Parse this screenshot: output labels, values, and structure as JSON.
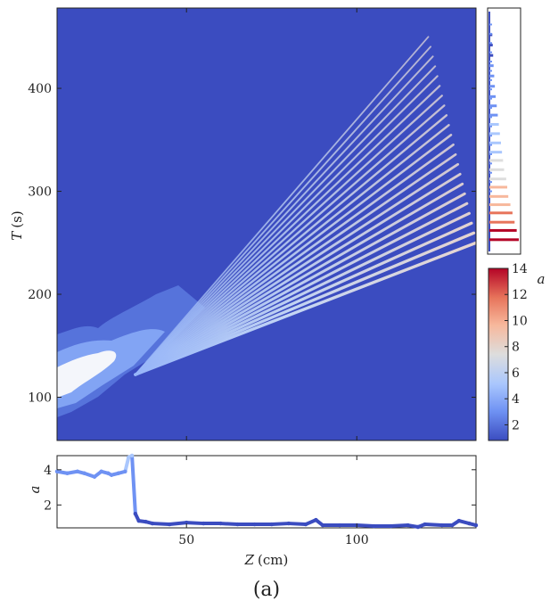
{
  "caption": "(a)",
  "colors": {
    "background_field": "#3b4cc0",
    "axis": "#222222",
    "colormap": [
      "#3b4cc0",
      "#6f92f3",
      "#aac7fd",
      "#dddddd",
      "#f7b89c",
      "#e7745b",
      "#b40426"
    ]
  },
  "chart_data": [
    {
      "type": "heatmap",
      "description_panel": "main",
      "xlabel": "",
      "ylabel_italic": "T",
      "ylabel_unit": "(s)",
      "xlim": [
        12,
        135
      ],
      "ylim": [
        58,
        478
      ],
      "y_ticks": [
        "100",
        "200",
        "300",
        "400"
      ],
      "x_ticks": [],
      "colorbar": {
        "label": "a",
        "range": [
          0.8,
          14
        ],
        "ticks": [
          "2",
          "4",
          "6",
          "8",
          "10",
          "12",
          "14"
        ]
      },
      "streaks": {
        "origin_z": 35,
        "origin_t": 122,
        "end_z": 121,
        "end_t": 450,
        "count": 22,
        "final_z": 135,
        "final_t": 250
      }
    },
    {
      "type": "bar",
      "description_panel": "side",
      "orientation": "horizontal",
      "note": "count per T (side histogram, same T axis as main panel)",
      "y": [
        253,
        262,
        270,
        279,
        287,
        295,
        304,
        312,
        321,
        330,
        338,
        347,
        356,
        365,
        374,
        383,
        392,
        402,
        412,
        422,
        432,
        442,
        452
      ],
      "values": [
        14,
        13,
        12,
        11,
        10,
        9,
        8.5,
        8,
        7,
        6.5,
        6,
        5.5,
        5,
        4.5,
        4,
        3.5,
        3,
        2.6,
        2.3,
        2,
        1.8,
        1.6,
        1.4
      ]
    },
    {
      "type": "line",
      "description_panel": "bottom",
      "xlabel_italic": "Z",
      "xlabel_unit": "(cm)",
      "ylabel_italic": "a",
      "xlim": [
        12,
        135
      ],
      "ylim": [
        0.7,
        4.8
      ],
      "x_ticks": [
        "50",
        "100"
      ],
      "y_ticks": [
        "2",
        "4"
      ],
      "x": [
        12,
        15,
        18,
        20,
        23,
        25,
        27,
        28,
        30,
        32,
        33,
        34,
        35,
        36,
        38,
        40,
        45,
        50,
        55,
        60,
        65,
        70,
        75,
        80,
        85,
        88,
        90,
        95,
        100,
        105,
        110,
        115,
        118,
        120,
        125,
        128,
        130,
        133,
        135
      ],
      "y": [
        3.9,
        3.8,
        3.9,
        3.8,
        3.6,
        3.9,
        3.8,
        3.7,
        3.8,
        3.9,
        4.7,
        4.8,
        1.5,
        1.1,
        1.05,
        0.95,
        0.9,
        1.0,
        0.95,
        0.95,
        0.9,
        0.9,
        0.9,
        0.95,
        0.9,
        1.15,
        0.85,
        0.85,
        0.85,
        0.8,
        0.8,
        0.85,
        0.75,
        0.9,
        0.85,
        0.85,
        1.1,
        0.95,
        0.85
      ]
    }
  ]
}
